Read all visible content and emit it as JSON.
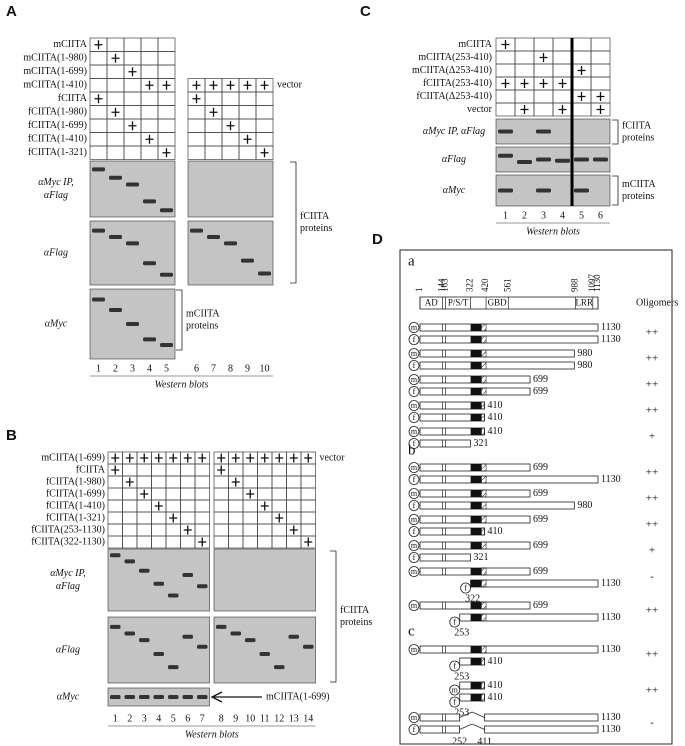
{
  "panel_a": {
    "label": "A",
    "lanes": [
      1,
      2,
      3,
      4,
      5,
      6,
      7,
      8,
      9,
      10
    ],
    "left_rows": [
      {
        "name": "mCIITA",
        "plus": [
          1
        ]
      },
      {
        "name": "mCIITA(1-980)",
        "plus": [
          2
        ]
      },
      {
        "name": "mCIITA(1-699)",
        "plus": [
          3
        ]
      },
      {
        "name": "mCIITA(1-410)",
        "plus": [
          4,
          5
        ]
      },
      {
        "name": "fCIITA",
        "plus": [
          1
        ]
      },
      {
        "name": "fCIITA(1-980)",
        "plus": [
          2
        ]
      },
      {
        "name": "fCIITA(1-699)",
        "plus": [
          3
        ]
      },
      {
        "name": "fCIITA(1-410)",
        "plus": [
          4
        ]
      },
      {
        "name": "fCIITA(1-321)",
        "plus": [
          5
        ]
      }
    ],
    "right_rows": [
      {
        "name": "vector",
        "plus": [
          6,
          7,
          8,
          9,
          10
        ]
      },
      {
        "plus": [
          6
        ]
      },
      {
        "plus": [
          7
        ]
      },
      {
        "plus": [
          8
        ]
      },
      {
        "plus": [
          9
        ]
      },
      {
        "plus": [
          10
        ]
      }
    ],
    "blots": [
      {
        "label": [
          "αMyc IP,",
          "αFlag"
        ]
      },
      {
        "label": [
          "αFlag"
        ]
      },
      {
        "label": [
          "αMyc"
        ]
      }
    ],
    "brackets": [
      [
        "fCIITA",
        "proteins"
      ],
      [
        "mCIITA",
        "proteins"
      ]
    ],
    "footer": "Western blots"
  },
  "panel_b": {
    "label": "B",
    "lanes": [
      1,
      2,
      3,
      4,
      5,
      6,
      7,
      8,
      9,
      10,
      11,
      12,
      13,
      14
    ],
    "left_rows": [
      {
        "name": "mCIITA(1-699)",
        "plus": [
          1,
          2,
          3,
          4,
          5,
          6,
          7
        ]
      },
      {
        "name": "fCIITA",
        "plus": [
          1
        ]
      },
      {
        "name": "fCIITA(1-980)",
        "plus": [
          2
        ]
      },
      {
        "name": "fCIITA(1-699)",
        "plus": [
          3
        ]
      },
      {
        "name": "fCIITA(1-410)",
        "plus": [
          4
        ]
      },
      {
        "name": "fCIITA(1-321)",
        "plus": [
          5
        ]
      },
      {
        "name": "fCIITA(253-1130)",
        "plus": [
          6
        ]
      },
      {
        "name": "fCIITA(322-1130)",
        "plus": [
          7
        ]
      }
    ],
    "right_rows": [
      {
        "name": "vector",
        "plus": [
          8,
          9,
          10,
          11,
          12,
          13,
          14
        ]
      },
      {
        "plus": [
          8
        ]
      },
      {
        "plus": [
          9
        ]
      },
      {
        "plus": [
          10
        ]
      },
      {
        "plus": [
          11
        ]
      },
      {
        "plus": [
          12
        ]
      },
      {
        "plus": [
          13
        ]
      },
      {
        "plus": [
          14
        ]
      }
    ],
    "blots": [
      {
        "label": [
          "αMyc IP,",
          "αFlag"
        ]
      },
      {
        "label": [
          "αFlag"
        ]
      },
      {
        "label": [
          "αMyc"
        ]
      }
    ],
    "brackets": [
      [
        "fCIITA",
        "proteins"
      ]
    ],
    "arrow_label": "mCIITA(1-699)",
    "footer": "Western blots"
  },
  "panel_c": {
    "label": "C",
    "lanes": [
      1,
      2,
      3,
      4,
      5,
      6
    ],
    "left_rows": [
      {
        "name": "mCIITA",
        "plus": [
          1
        ]
      },
      {
        "name": "mCIITA(253-410)",
        "plus": [
          3
        ]
      },
      {
        "name": "mCIITA(Δ253-410)",
        "plus": [
          5
        ]
      },
      {
        "name": "fCIITA(253-410)",
        "plus": [
          1,
          2,
          3,
          4
        ]
      },
      {
        "name": "fCIITA(Δ253-410)",
        "plus": [
          5,
          6
        ]
      },
      {
        "name": "vector",
        "plus": [
          2,
          4,
          6
        ]
      }
    ],
    "blots": [
      {
        "label": [
          "αMyc IP, αFlag"
        ]
      },
      {
        "label": [
          "αFlag"
        ]
      },
      {
        "label": [
          "αMyc"
        ]
      }
    ],
    "brackets": [
      [
        "fCIITA",
        "proteins"
      ],
      [
        "mCIITA",
        "proteins"
      ]
    ],
    "footer": "Western blots"
  },
  "panel_d": {
    "label": "D",
    "positions": [
      1,
      144,
      163,
      322,
      420,
      561,
      988,
      1097,
      1130
    ],
    "domains": [
      {
        "name": "AD",
        "from": 1,
        "to": 144
      },
      {
        "name": "P/S/T",
        "from": 163,
        "to": 322
      },
      {
        "name": "GBD",
        "from": 420,
        "to": 561
      },
      {
        "name": "LRR",
        "from": 988,
        "to": 1097
      }
    ],
    "oligomers_label": "Oligomers",
    "sections": [
      {
        "label": "a",
        "constructs": [
          {
            "bars": [
              {
                "tag": "m",
                "end": 1130
              },
              {
                "tag": "f",
                "end": 1130
              }
            ],
            "oligomers": "++"
          },
          {
            "bars": [
              {
                "tag": "m",
                "end": 980
              },
              {
                "tag": "f",
                "end": 980
              }
            ],
            "oligomers": "++"
          },
          {
            "bars": [
              {
                "tag": "m",
                "end": 699
              },
              {
                "tag": "f",
                "end": 699
              }
            ],
            "oligomers": "++"
          },
          {
            "bars": [
              {
                "tag": "m",
                "end": 410
              },
              {
                "tag": "f",
                "end": 410
              }
            ],
            "oligomers": "++"
          },
          {
            "bars": [
              {
                "tag": "m",
                "end": 410
              },
              {
                "tag": "f",
                "end": 321
              }
            ],
            "oligomers": "+"
          }
        ]
      },
      {
        "label": "b",
        "constructs": [
          {
            "bars": [
              {
                "tag": "m",
                "end": 699
              },
              {
                "tag": "f",
                "end": 1130
              }
            ],
            "oligomers": "++"
          },
          {
            "bars": [
              {
                "tag": "m",
                "end": 699
              },
              {
                "tag": "f",
                "end": 980
              }
            ],
            "oligomers": "++"
          },
          {
            "bars": [
              {
                "tag": "m",
                "end": 699
              },
              {
                "tag": "f",
                "end": 410
              }
            ],
            "oligomers": "++"
          },
          {
            "bars": [
              {
                "tag": "m",
                "end": 699
              },
              {
                "tag": "f",
                "end": 321
              }
            ],
            "oligomers": "+"
          },
          {
            "bars": [
              {
                "tag": "m",
                "end": 699
              },
              {
                "tag": "f",
                "start": 322,
                "end": 1130
              }
            ],
            "oligomers": "-"
          },
          {
            "bars": [
              {
                "tag": "m",
                "end": 699
              },
              {
                "tag": "f",
                "start": 253,
                "end": 1130
              }
            ],
            "oligomers": "++"
          }
        ]
      },
      {
        "label": "c",
        "constructs": [
          {
            "bars": [
              {
                "tag": "m",
                "end": 1130
              },
              {
                "tag": "f",
                "start": 253,
                "end": 410
              }
            ],
            "oligomers": "++"
          },
          {
            "bars": [
              {
                "tag": "m",
                "start": 253,
                "end": 410
              },
              {
                "tag": "f",
                "start": 253,
                "end": 410
              }
            ],
            "oligomers": "++"
          },
          {
            "bars": [
              {
                "tag": "m",
                "end": 1130,
                "deletion": [
                  252,
                  411
                ]
              },
              {
                "tag": "f",
                "end": 1130,
                "deletion": [
                  252,
                  411
                ]
              }
            ],
            "oligomers": "-"
          }
        ]
      }
    ]
  }
}
